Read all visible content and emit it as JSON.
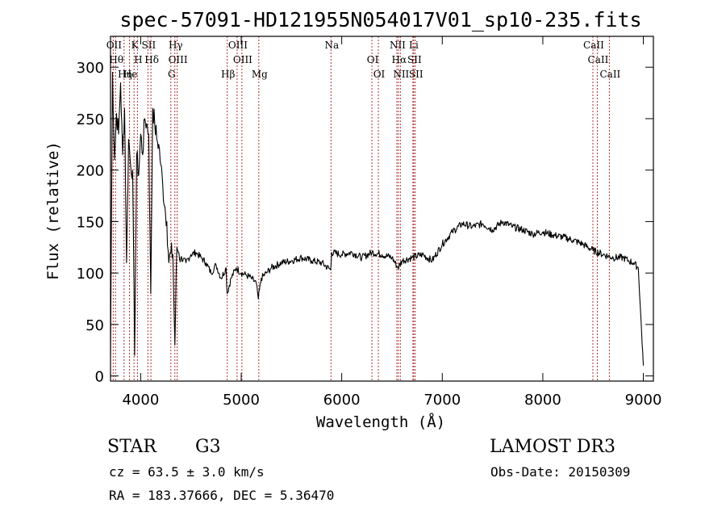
{
  "chart_data": {
    "type": "line",
    "title": "spec-57091-HD121955N054017V01_sp10-235.fits",
    "xlabel": "Wavelength (Å)",
    "ylabel": "Flux (relative)",
    "xlim": [
      3700,
      9100
    ],
    "ylim": [
      -5,
      330
    ],
    "x_ticks": [
      4000,
      5000,
      6000,
      7000,
      8000,
      9000
    ],
    "y_ticks": [
      0,
      50,
      100,
      150,
      200,
      250,
      300
    ],
    "series": [
      {
        "x": [
          3700,
          3720,
          3740,
          3760,
          3780,
          3800,
          3820,
          3840,
          3860,
          3880,
          3900,
          3920,
          3940,
          3960,
          3980,
          4000,
          4020,
          4040,
          4060,
          4080,
          4100,
          4120,
          4140,
          4160,
          4180,
          4200,
          4220,
          4240,
          4260,
          4280,
          4300,
          4320,
          4340,
          4360,
          4380,
          4400,
          4450,
          4500,
          4550,
          4600,
          4650,
          4700,
          4750,
          4800,
          4850,
          4860,
          4900,
          4950,
          5000,
          5050,
          5100,
          5150,
          5170,
          5200,
          5250,
          5300,
          5400,
          5500,
          5600,
          5700,
          5800,
          5890,
          5900,
          6000,
          6100,
          6200,
          6300,
          6400,
          6500,
          6560,
          6600,
          6700,
          6800,
          6900,
          7000,
          7100,
          7200,
          7300,
          7400,
          7500,
          7600,
          7700,
          7800,
          7900,
          8000,
          8100,
          8200,
          8300,
          8400,
          8500,
          8600,
          8700,
          8800,
          8850,
          8900,
          8950,
          9000
        ],
        "y": [
          20,
          295,
          210,
          255,
          235,
          285,
          215,
          260,
          110,
          230,
          205,
          200,
          20,
          215,
          195,
          235,
          215,
          250,
          245,
          235,
          80,
          260,
          245,
          230,
          225,
          205,
          185,
          165,
          150,
          110,
          120,
          118,
          30,
          125,
          120,
          115,
          110,
          118,
          120,
          115,
          110,
          100,
          108,
          95,
          105,
          80,
          95,
          105,
          100,
          98,
          95,
          90,
          75,
          95,
          100,
          105,
          110,
          112,
          115,
          112,
          110,
          103,
          120,
          118,
          120,
          115,
          120,
          118,
          115,
          105,
          112,
          115,
          118,
          112,
          128,
          140,
          148,
          145,
          148,
          142,
          150,
          145,
          142,
          138,
          140,
          137,
          135,
          132,
          128,
          122,
          118,
          115,
          115,
          112,
          110,
          105,
          10
        ],
        "color": "#000000"
      }
    ],
    "line_markers": {
      "color": "#b03030",
      "lines": [
        {
          "label": "OII",
          "x": 3727
        },
        {
          "label": "Hθ",
          "x": 3750
        },
        {
          "label": "Hη",
          "x": 3835
        },
        {
          "label": "K",
          "x": 3934
        },
        {
          "label": "H",
          "x": 3968
        },
        {
          "label": "He",
          "x": 3889
        },
        {
          "label": "SII",
          "x": 4072
        },
        {
          "label": "Hδ",
          "x": 4102
        },
        {
          "label": "G",
          "x": 4300
        },
        {
          "label": "Hγ",
          "x": 4340
        },
        {
          "label": "OIII",
          "x": 4363
        },
        {
          "label": "Hβ",
          "x": 4861
        },
        {
          "label": "OIII",
          "x": 4959
        },
        {
          "label": "OIII",
          "x": 5007
        },
        {
          "label": "Mg",
          "x": 5175
        },
        {
          "label": "Na",
          "x": 5893
        },
        {
          "label": "OI",
          "x": 6300
        },
        {
          "label": "OI",
          "x": 6364
        },
        {
          "label": "NII",
          "x": 6548
        },
        {
          "label": "Hα",
          "x": 6563
        },
        {
          "label": "NII",
          "x": 6583
        },
        {
          "label": "Li",
          "x": 6708
        },
        {
          "label": "SII",
          "x": 6716
        },
        {
          "label": "SII",
          "x": 6731
        },
        {
          "label": "CaII",
          "x": 8498
        },
        {
          "label": "CaII",
          "x": 8542
        },
        {
          "label": "CaII",
          "x": 8662
        }
      ]
    }
  },
  "info": {
    "class_label": "STAR",
    "subclass": "G3",
    "survey": "LAMOST DR3",
    "cz": "cz = 63.5 ± 3.0 km/s",
    "obs_date": "Obs-Date: 20150309",
    "radec": "RA = 183.37666, DEC =   5.36470"
  }
}
